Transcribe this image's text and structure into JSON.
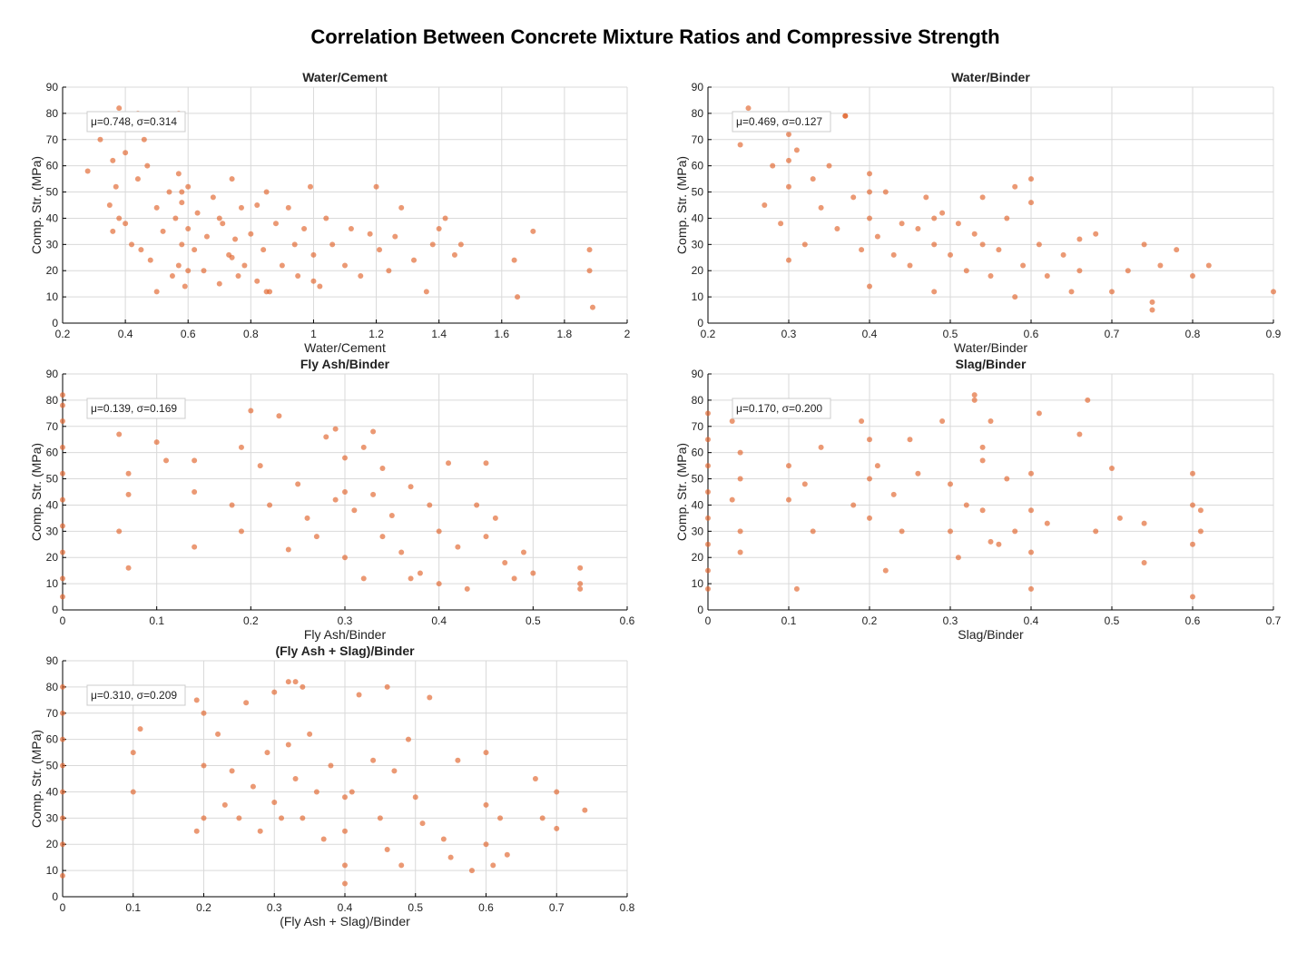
{
  "title": "Correlation Between Concrete Mixture Ratios and Compressive Strength",
  "colors": {
    "point": "#E0622A",
    "grid": "#d9d9d9",
    "axis": "#000000"
  },
  "chart_data": [
    {
      "type": "scatter",
      "title": "Water/Cement",
      "xlabel": "Water/Cement",
      "ylabel": "Comp. Str. (MPa)",
      "xlim": [
        0.2,
        2.0
      ],
      "ylim": [
        0,
        90
      ],
      "xticks": [
        "0.2",
        "0.4",
        "0.6",
        "0.8",
        "1",
        "1.2",
        "1.4",
        "1.6",
        "1.8",
        "2"
      ],
      "yticks": [
        "0",
        "10",
        "20",
        "30",
        "40",
        "50",
        "60",
        "70",
        "80",
        "90"
      ],
      "annotation": "μ=0.748, σ=0.314",
      "grid": true,
      "x": [
        0.28,
        0.3,
        0.32,
        0.35,
        0.36,
        0.37,
        0.38,
        0.4,
        0.4,
        0.42,
        0.44,
        0.45,
        0.47,
        0.48,
        0.5,
        0.5,
        0.52,
        0.54,
        0.55,
        0.56,
        0.57,
        0.57,
        0.58,
        0.58,
        0.59,
        0.6,
        0.6,
        0.62,
        0.63,
        0.65,
        0.66,
        0.68,
        0.7,
        0.71,
        0.73,
        0.74,
        0.75,
        0.76,
        0.77,
        0.78,
        0.8,
        0.82,
        0.84,
        0.85,
        0.86,
        0.88,
        0.9,
        0.92,
        0.94,
        0.95,
        0.97,
        0.99,
        1.0,
        1.02,
        1.04,
        1.06,
        1.1,
        1.12,
        1.15,
        1.18,
        1.2,
        1.21,
        1.24,
        1.26,
        1.28,
        1.32,
        1.36,
        1.38,
        1.4,
        1.42,
        1.45,
        1.47,
        1.64,
        1.65,
        1.7,
        1.88,
        1.88,
        1.89,
        0.38,
        0.44,
        0.57,
        0.6,
        0.85,
        1.0,
        0.36,
        0.46,
        0.74,
        0.58,
        0.7,
        0.82
      ],
      "y": [
        58,
        75,
        70,
        45,
        62,
        52,
        40,
        38,
        65,
        30,
        55,
        28,
        60,
        24,
        44,
        12,
        35,
        50,
        18,
        40,
        22,
        57,
        30,
        46,
        14,
        36,
        52,
        28,
        42,
        20,
        33,
        48,
        15,
        38,
        26,
        55,
        32,
        18,
        44,
        22,
        34,
        16,
        28,
        50,
        12,
        38,
        22,
        44,
        30,
        18,
        36,
        52,
        26,
        14,
        40,
        30,
        22,
        36,
        18,
        34,
        52,
        28,
        20,
        33,
        44,
        24,
        12,
        30,
        36,
        40,
        26,
        30,
        24,
        10,
        35,
        28,
        20,
        6,
        82,
        80,
        80,
        20,
        12,
        16,
        35,
        70,
        25,
        50,
        40,
        45
      ],
      "mean_label": "μ=0.748, σ=0.314"
    },
    {
      "type": "scatter",
      "title": "Water/Binder",
      "xlabel": "Water/Binder",
      "ylabel": "Comp. Str. (MPa)",
      "xlim": [
        0.2,
        0.9
      ],
      "ylim": [
        0,
        90
      ],
      "xticks": [
        "0.2",
        "0.3",
        "0.4",
        "0.5",
        "0.6",
        "0.7",
        "0.8",
        "0.9"
      ],
      "yticks": [
        "0",
        "10",
        "20",
        "30",
        "40",
        "50",
        "60",
        "70",
        "80",
        "90"
      ],
      "annotation": "μ=0.469, σ=0.127",
      "grid": true,
      "x": [
        0.24,
        0.25,
        0.27,
        0.28,
        0.29,
        0.3,
        0.3,
        0.3,
        0.31,
        0.32,
        0.33,
        0.34,
        0.35,
        0.36,
        0.37,
        0.38,
        0.39,
        0.4,
        0.4,
        0.4,
        0.41,
        0.42,
        0.43,
        0.44,
        0.45,
        0.46,
        0.47,
        0.48,
        0.48,
        0.49,
        0.5,
        0.51,
        0.52,
        0.53,
        0.54,
        0.55,
        0.56,
        0.57,
        0.58,
        0.58,
        0.59,
        0.6,
        0.6,
        0.61,
        0.62,
        0.64,
        0.65,
        0.66,
        0.68,
        0.7,
        0.72,
        0.74,
        0.75,
        0.76,
        0.78,
        0.8,
        0.82,
        0.9,
        0.37,
        0.3,
        0.4,
        0.48,
        0.54,
        0.66,
        0.75
      ],
      "y": [
        68,
        82,
        45,
        60,
        38,
        72,
        52,
        24,
        66,
        30,
        55,
        44,
        60,
        36,
        79,
        48,
        28,
        57,
        40,
        14,
        33,
        50,
        26,
        38,
        22,
        36,
        48,
        30,
        12,
        42,
        26,
        38,
        20,
        34,
        48,
        18,
        28,
        40,
        10,
        52,
        22,
        55,
        46,
        30,
        18,
        26,
        12,
        32,
        34,
        12,
        20,
        30,
        8,
        22,
        28,
        18,
        22,
        12,
        79,
        62,
        50,
        40,
        30,
        20,
        5
      ],
      "mean_label": "μ=0.469, σ=0.127"
    },
    {
      "type": "scatter",
      "title": "Fly Ash/Binder",
      "xlabel": "Fly Ash/Binder",
      "ylabel": "Comp. Str. (MPa)",
      "xlim": [
        0,
        0.6
      ],
      "ylim": [
        0,
        90
      ],
      "xticks": [
        "0",
        "0.1",
        "0.2",
        "0.3",
        "0.4",
        "0.5",
        "0.6"
      ],
      "yticks": [
        "0",
        "10",
        "20",
        "30",
        "40",
        "50",
        "60",
        "70",
        "80",
        "90"
      ],
      "annotation": "μ=0.139, σ=0.169",
      "grid": true,
      "x": [
        0,
        0,
        0,
        0,
        0,
        0,
        0,
        0,
        0,
        0,
        0.06,
        0.06,
        0.07,
        0.07,
        0.07,
        0.1,
        0.11,
        0.14,
        0.14,
        0.14,
        0.18,
        0.19,
        0.19,
        0.2,
        0.21,
        0.22,
        0.23,
        0.24,
        0.25,
        0.26,
        0.27,
        0.28,
        0.29,
        0.3,
        0.3,
        0.31,
        0.32,
        0.32,
        0.33,
        0.34,
        0.34,
        0.35,
        0.36,
        0.37,
        0.38,
        0.39,
        0.4,
        0.4,
        0.41,
        0.42,
        0.43,
        0.44,
        0.45,
        0.45,
        0.46,
        0.47,
        0.48,
        0.49,
        0.5,
        0.55,
        0.55,
        0.55,
        0.29,
        0.33,
        0.37,
        0.3
      ],
      "y": [
        82,
        72,
        62,
        52,
        42,
        32,
        22,
        12,
        5,
        78,
        67,
        30,
        52,
        44,
        16,
        64,
        57,
        57,
        45,
        24,
        40,
        62,
        30,
        76,
        55,
        40,
        74,
        23,
        48,
        35,
        28,
        66,
        42,
        58,
        20,
        38,
        62,
        12,
        44,
        28,
        54,
        36,
        22,
        47,
        14,
        40,
        30,
        10,
        56,
        24,
        8,
        40,
        56,
        28,
        35,
        18,
        12,
        22,
        14,
        16,
        10,
        8,
        69,
        68,
        12,
        45
      ],
      "mean_label": "μ=0.139, σ=0.169"
    },
    {
      "type": "scatter",
      "title": "Slag/Binder",
      "xlabel": "Slag/Binder",
      "ylabel": "Comp. Str. (MPa)",
      "xlim": [
        0,
        0.7
      ],
      "ylim": [
        0,
        90
      ],
      "xticks": [
        "0",
        "0.1",
        "0.2",
        "0.3",
        "0.4",
        "0.5",
        "0.6",
        "0.7"
      ],
      "yticks": [
        "0",
        "10",
        "20",
        "30",
        "40",
        "50",
        "60",
        "70",
        "80",
        "90"
      ],
      "annotation": "μ=0.170, σ=0.200",
      "grid": true,
      "x": [
        0,
        0,
        0,
        0,
        0,
        0,
        0,
        0,
        0.03,
        0.03,
        0.04,
        0.04,
        0.04,
        0.04,
        0.1,
        0.1,
        0.11,
        0.12,
        0.13,
        0.14,
        0.18,
        0.19,
        0.2,
        0.2,
        0.2,
        0.21,
        0.22,
        0.23,
        0.24,
        0.25,
        0.26,
        0.29,
        0.3,
        0.3,
        0.31,
        0.32,
        0.33,
        0.34,
        0.34,
        0.35,
        0.36,
        0.37,
        0.38,
        0.4,
        0.4,
        0.4,
        0.4,
        0.41,
        0.42,
        0.46,
        0.47,
        0.48,
        0.5,
        0.51,
        0.54,
        0.54,
        0.6,
        0.6,
        0.6,
        0.6,
        0.61,
        0.61,
        0.33,
        0.34,
        0.35
      ],
      "y": [
        75,
        65,
        55,
        45,
        35,
        25,
        15,
        8,
        72,
        42,
        60,
        50,
        30,
        22,
        55,
        42,
        8,
        48,
        30,
        62,
        40,
        72,
        65,
        50,
        35,
        55,
        15,
        44,
        30,
        65,
        52,
        72,
        48,
        30,
        20,
        40,
        82,
        62,
        38,
        72,
        25,
        50,
        30,
        52,
        38,
        22,
        8,
        75,
        33,
        67,
        80,
        30,
        54,
        35,
        33,
        18,
        52,
        40,
        25,
        5,
        38,
        30,
        80,
        57,
        26
      ],
      "mean_label": "μ=0.170, σ=0.200"
    },
    {
      "type": "scatter",
      "title": "(Fly Ash + Slag)/Binder",
      "xlabel": "(Fly Ash + Slag)/Binder",
      "ylabel": "Comp. Str. (MPa)",
      "xlim": [
        0,
        0.8
      ],
      "ylim": [
        0,
        90
      ],
      "xticks": [
        "0",
        "0.1",
        "0.2",
        "0.3",
        "0.4",
        "0.5",
        "0.6",
        "0.7",
        "0.8"
      ],
      "yticks": [
        "0",
        "10",
        "20",
        "30",
        "40",
        "50",
        "60",
        "70",
        "80",
        "90"
      ],
      "annotation": "μ=0.310, σ=0.209",
      "grid": true,
      "x": [
        0,
        0,
        0,
        0,
        0,
        0,
        0,
        0,
        0.1,
        0.1,
        0.11,
        0.19,
        0.19,
        0.2,
        0.2,
        0.2,
        0.22,
        0.23,
        0.24,
        0.25,
        0.26,
        0.27,
        0.28,
        0.29,
        0.3,
        0.3,
        0.31,
        0.32,
        0.33,
        0.34,
        0.34,
        0.35,
        0.36,
        0.37,
        0.38,
        0.4,
        0.4,
        0.4,
        0.4,
        0.41,
        0.42,
        0.44,
        0.45,
        0.46,
        0.47,
        0.48,
        0.49,
        0.5,
        0.51,
        0.52,
        0.54,
        0.55,
        0.56,
        0.58,
        0.6,
        0.6,
        0.6,
        0.61,
        0.62,
        0.63,
        0.67,
        0.68,
        0.7,
        0.7,
        0.74,
        0.32,
        0.33,
        0.46
      ],
      "y": [
        80,
        70,
        60,
        50,
        40,
        30,
        20,
        8,
        55,
        40,
        64,
        75,
        25,
        70,
        50,
        30,
        62,
        35,
        48,
        30,
        74,
        42,
        25,
        55,
        78,
        36,
        30,
        58,
        45,
        80,
        30,
        62,
        40,
        22,
        50,
        38,
        25,
        12,
        5,
        40,
        77,
        52,
        30,
        18,
        48,
        12,
        60,
        38,
        28,
        76,
        22,
        15,
        52,
        10,
        55,
        35,
        20,
        12,
        30,
        16,
        45,
        30,
        40,
        26,
        33,
        82,
        82,
        80
      ],
      "mean_label": "μ=0.310, σ=0.209"
    }
  ]
}
